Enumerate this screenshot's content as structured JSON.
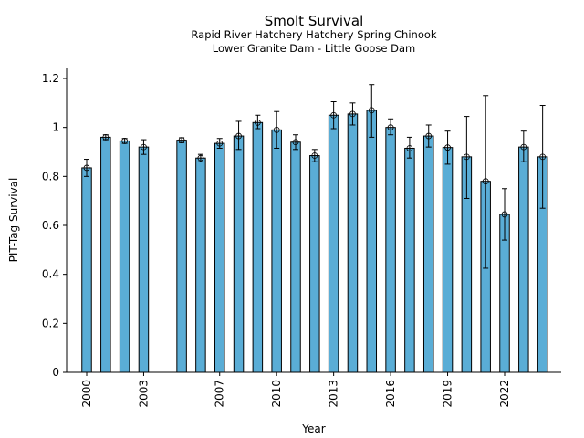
{
  "chart_data": {
    "type": "bar",
    "title": "Smolt Survival",
    "subtitle_lines": [
      "Rapid River Hatchery Hatchery Spring Chinook",
      "Lower Granite Dam - Little Goose Dam"
    ],
    "xlabel": "Year",
    "ylabel": "PIT-Tag Survival",
    "ylim": [
      0,
      1.24
    ],
    "xlim": [
      1999.3,
      2024.7
    ],
    "yticks": [
      0,
      0.2,
      0.4,
      0.6,
      0.8,
      1,
      1.2
    ],
    "ytick_labels": [
      "0",
      "0.2",
      "0.4",
      "0.6",
      "0.8",
      "1",
      "1.2"
    ],
    "xticks": [
      2000,
      2003,
      2007,
      2010,
      2013,
      2016,
      2019,
      2022
    ],
    "xtick_labels": [
      "2000",
      "2003",
      "2007",
      "2010",
      "2013",
      "2016",
      "2019",
      "2022"
    ],
    "grid": false,
    "legend": "none",
    "bar_color": "#5aadd6",
    "bar_edge_color": "#000000",
    "points": [
      {
        "year": 2000,
        "value": 0.835,
        "lower": 0.8,
        "upper": 0.87
      },
      {
        "year": 2001,
        "value": 0.96,
        "lower": 0.95,
        "upper": 0.97
      },
      {
        "year": 2002,
        "value": 0.945,
        "lower": 0.935,
        "upper": 0.955
      },
      {
        "year": 2003,
        "value": 0.92,
        "lower": 0.89,
        "upper": 0.95
      },
      {
        "year": 2005,
        "value": 0.948,
        "lower": 0.938,
        "upper": 0.958
      },
      {
        "year": 2006,
        "value": 0.875,
        "lower": 0.86,
        "upper": 0.89
      },
      {
        "year": 2007,
        "value": 0.935,
        "lower": 0.915,
        "upper": 0.955
      },
      {
        "year": 2008,
        "value": 0.965,
        "lower": 0.91,
        "upper": 1.025
      },
      {
        "year": 2009,
        "value": 1.02,
        "lower": 0.995,
        "upper": 1.05
      },
      {
        "year": 2010,
        "value": 0.99,
        "lower": 0.915,
        "upper": 1.065
      },
      {
        "year": 2011,
        "value": 0.94,
        "lower": 0.91,
        "upper": 0.97
      },
      {
        "year": 2012,
        "value": 0.885,
        "lower": 0.86,
        "upper": 0.91
      },
      {
        "year": 2013,
        "value": 1.05,
        "lower": 0.995,
        "upper": 1.105
      },
      {
        "year": 2014,
        "value": 1.055,
        "lower": 1.01,
        "upper": 1.1
      },
      {
        "year": 2015,
        "value": 1.07,
        "lower": 0.96,
        "upper": 1.175
      },
      {
        "year": 2016,
        "value": 1.0,
        "lower": 0.97,
        "upper": 1.035
      },
      {
        "year": 2017,
        "value": 0.915,
        "lower": 0.875,
        "upper": 0.96
      },
      {
        "year": 2018,
        "value": 0.965,
        "lower": 0.92,
        "upper": 1.01
      },
      {
        "year": 2019,
        "value": 0.918,
        "lower": 0.85,
        "upper": 0.985
      },
      {
        "year": 2020,
        "value": 0.88,
        "lower": 0.71,
        "upper": 1.045
      },
      {
        "year": 2021,
        "value": 0.78,
        "lower": 0.425,
        "upper": 1.13
      },
      {
        "year": 2022,
        "value": 0.645,
        "lower": 0.54,
        "upper": 0.75
      },
      {
        "year": 2023,
        "value": 0.92,
        "lower": 0.86,
        "upper": 0.985
      },
      {
        "year": 2024,
        "value": 0.88,
        "lower": 0.67,
        "upper": 1.09
      }
    ]
  }
}
